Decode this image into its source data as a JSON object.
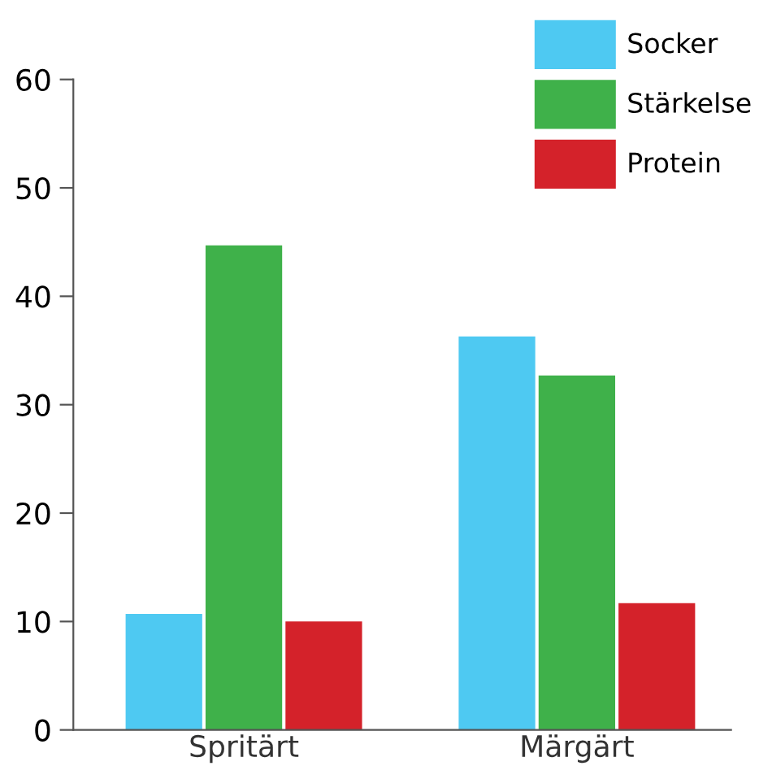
{
  "chart_data": {
    "type": "bar",
    "categories": [
      "Spritärt",
      "Märgärt"
    ],
    "series": [
      {
        "name": "Socker",
        "color": "#4ec9f2",
        "values": [
          10.7,
          36.3
        ]
      },
      {
        "name": "Stärkelse",
        "color": "#3fb14a",
        "values": [
          44.7,
          32.7
        ]
      },
      {
        "name": "Protein",
        "color": "#d4222a",
        "values": [
          10.0,
          11.7
        ]
      }
    ],
    "ylim": [
      0,
      60
    ],
    "yticks": [
      0,
      10,
      20,
      30,
      40,
      50,
      60
    ],
    "grid": false,
    "legend": "top right"
  }
}
